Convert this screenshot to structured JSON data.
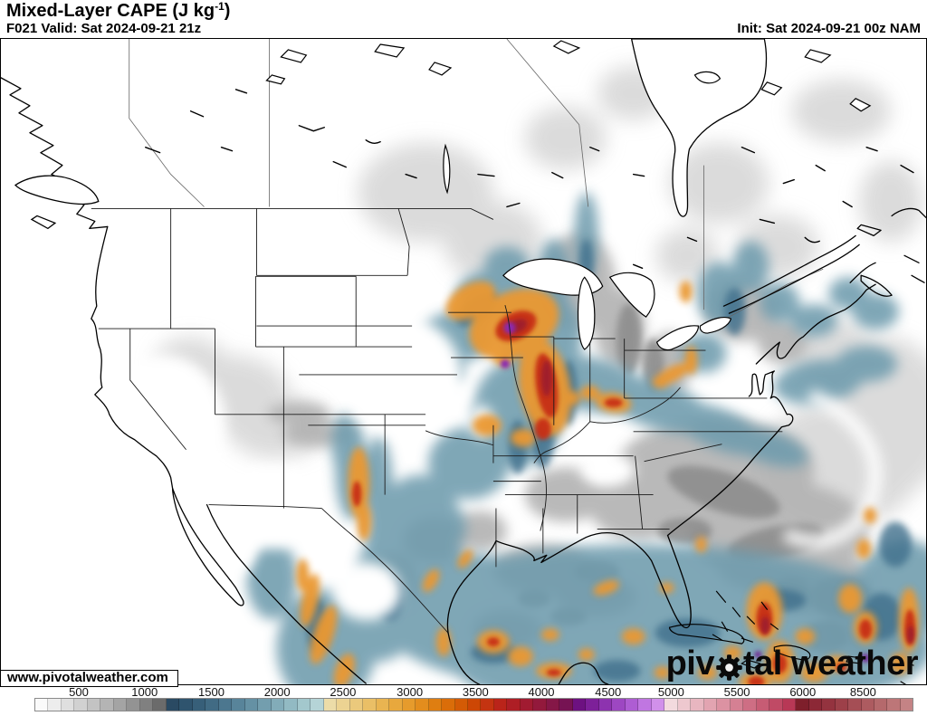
{
  "header": {
    "title_main": "Mixed-Layer CAPE (J kg",
    "title_sup": "-1",
    "title_close": ")",
    "valid": "F021 Valid: Sat 2024-09-21 21z",
    "init": "Init: Sat 2024-09-21 00z NAM"
  },
  "site_label": "www.pivotalweather.com",
  "watermark": {
    "part1": "piv",
    "part2": "tal",
    "part3": " weather"
  },
  "colorbar": {
    "units": "J kg-1",
    "outline_color": "#8a8a8a",
    "ticks": [
      {
        "label": "500",
        "pos": 0.085
      },
      {
        "label": "1000",
        "pos": 0.156
      },
      {
        "label": "1500",
        "pos": 0.228
      },
      {
        "label": "2000",
        "pos": 0.299
      },
      {
        "label": "2500",
        "pos": 0.37
      },
      {
        "label": "3000",
        "pos": 0.442
      },
      {
        "label": "3500",
        "pos": 0.513
      },
      {
        "label": "4000",
        "pos": 0.584
      },
      {
        "label": "4500",
        "pos": 0.656
      },
      {
        "label": "5000",
        "pos": 0.724
      },
      {
        "label": "5500",
        "pos": 0.795
      },
      {
        "label": "6000",
        "pos": 0.866
      },
      {
        "label": "8500",
        "pos": 0.931
      }
    ],
    "colors": [
      "#fafafa",
      "#ededed",
      "#dfdfdf",
      "#d1d1d1",
      "#c3c3c3",
      "#b4b4b4",
      "#a4a4a4",
      "#939393",
      "#808080",
      "#6b6b6b",
      "#2a4a63",
      "#2f546e",
      "#375f79",
      "#416b84",
      "#4c778f",
      "#58849a",
      "#6591a4",
      "#739eae",
      "#82acb9",
      "#92bac3",
      "#a3c8cd",
      "#b5d4d7",
      "#ecdca8",
      "#ecd392",
      "#ebc97c",
      "#eabf66",
      "#e9b451",
      "#e8a83d",
      "#e69b2c",
      "#e38d1d",
      "#df7e11",
      "#da6d09",
      "#d45b05",
      "#cd4705",
      "#c43411",
      "#ba241a",
      "#ae1e25",
      "#a11b31",
      "#93193c",
      "#851747",
      "#761353",
      "#6d1181",
      "#7d2099",
      "#8d33af",
      "#9d47c2",
      "#ae5dd3",
      "#c076e1",
      "#d190ea",
      "#f3dade",
      "#eec8cf",
      "#e8b6c0",
      "#e2a4b1",
      "#dc92a2",
      "#d58093",
      "#ce6e84",
      "#c75c74",
      "#c04a65",
      "#b83856",
      "#7e1f2b",
      "#8c2836",
      "#94333f",
      "#9d4049",
      "#a54e55",
      "#ad5b60",
      "#b5696c",
      "#bd7678",
      "#c48385"
    ]
  },
  "map_palette": {
    "low_gray": "#d8d8d8",
    "mid_gray": "#b2b2b2",
    "teal": "#6e9bad",
    "orange": "#ea9833",
    "red": "#c62f12",
    "purple": "#8a2bb0"
  }
}
